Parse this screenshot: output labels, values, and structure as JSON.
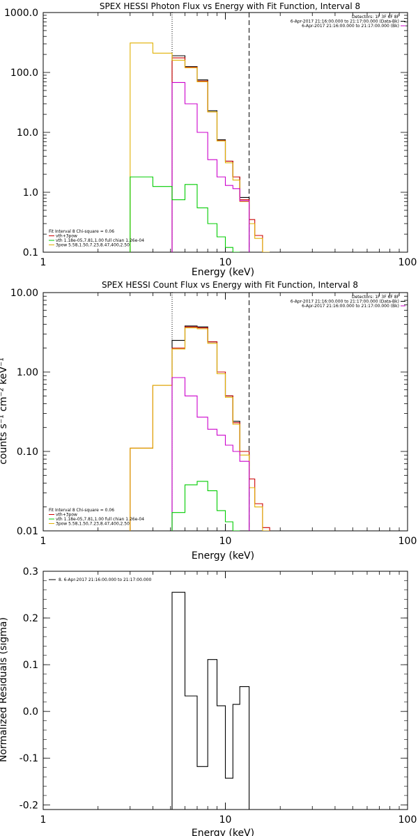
{
  "chart_data": [
    {
      "type": "line",
      "title": "SPEX HESSI Photon Flux vs Energy with Fit Function, Interval 8",
      "xlabel": "Energy (keV)",
      "ylabel": "",
      "x_scale": "log",
      "y_scale": "log",
      "xlim": [
        1,
        100
      ],
      "ylim": [
        0.1,
        1000
      ],
      "x_ticks": [
        "1",
        "10",
        "100"
      ],
      "y_ticks": [
        "0.1",
        "1.0",
        "10.0",
        "100.0",
        "1000.0"
      ],
      "info_lines": [
        {
          "text": "Detectors: 1F 3F 6F 8F",
          "color": "#000000"
        },
        {
          "text": "6-Apr-2017 21:16:00.000 to 21:17:00.000 (Data-Bk)",
          "color": "#000000"
        },
        {
          "text": "6-Apr-2017 21:16:00.000 to 21:17:00.000 (Bk)",
          "color": "#cc00cc"
        }
      ],
      "legend_lines": [
        {
          "text": "Fit Interval  8    Chi-square = 0.06",
          "color": "#000000"
        },
        {
          "text": "vth+3pow",
          "color": "#cc0000"
        },
        {
          "text": "vth 1.18e-05,7.81,1.00   full chian 1.26e-04",
          "color": "#00cc00"
        },
        {
          "text": "3pow 5.58,1.50,7.23,8.47,400,2.50",
          "color": "#e0b000"
        }
      ],
      "vlines": [
        {
          "x": 5.1,
          "style": "dotted"
        },
        {
          "x": 13.5,
          "style": "dashed"
        }
      ],
      "bin_edges": [
        3,
        4,
        5.1,
        6,
        7,
        8,
        9,
        10,
        11,
        12,
        13.5,
        14.5,
        16,
        17.5
      ],
      "series": [
        {
          "name": "Data-Bk",
          "color": "#000000",
          "values": [
            null,
            null,
            190,
            125,
            75,
            23,
            7.5,
            3.3,
            1.8,
            0.82,
            null,
            null,
            null
          ]
        },
        {
          "name": "vth+3pow",
          "color": "#cc0000",
          "values": [
            null,
            null,
            175,
            122,
            72,
            22,
            7.3,
            3.3,
            1.8,
            0.75,
            0.35,
            0.19,
            null
          ]
        },
        {
          "name": "3pow",
          "color": "#e0b000",
          "values": [
            310,
            210,
            160,
            120,
            70,
            22,
            7.2,
            3.1,
            1.6,
            0.7,
            0.3,
            0.17,
            0.1
          ]
        },
        {
          "name": "Bk",
          "color": "#cc00cc",
          "values": [
            null,
            null,
            68,
            30,
            10,
            3.5,
            1.8,
            1.3,
            1.15,
            0.72,
            null,
            null,
            null
          ]
        },
        {
          "name": "vth",
          "color": "#00cc00",
          "values": [
            1.8,
            1.25,
            0.75,
            1.35,
            0.55,
            0.3,
            0.18,
            0.12,
            0.1,
            null,
            null,
            null,
            null
          ]
        }
      ]
    },
    {
      "type": "line",
      "title": "SPEX HESSI Count Flux vs Energy with Fit Function, Interval 8",
      "xlabel": "Energy (keV)",
      "ylabel": "counts s⁻¹ cm⁻² keV⁻¹",
      "x_scale": "log",
      "y_scale": "log",
      "xlim": [
        1,
        100
      ],
      "ylim": [
        0.01,
        10
      ],
      "x_ticks": [
        "1",
        "10",
        "100"
      ],
      "y_ticks": [
        "0.01",
        "0.10",
        "1.00",
        "10.00"
      ],
      "info_lines": [
        {
          "text": "Detectors: 1F 3F 6F 8F",
          "color": "#000000"
        },
        {
          "text": "6-Apr-2017 21:16:00.000 to 21:17:00.000 (Data-Bk)",
          "color": "#000000"
        },
        {
          "text": "6-Apr-2017 21:16:00.000 to 21:17:00.000 (Bk)",
          "color": "#cc00cc"
        }
      ],
      "legend_lines": [
        {
          "text": "Fit Interval  8    Chi-square = 0.06",
          "color": "#000000"
        },
        {
          "text": "vth+3pow",
          "color": "#cc0000"
        },
        {
          "text": "vth 1.18e-05,7.81,1.00   full chian 1.26e-04",
          "color": "#00cc00"
        },
        {
          "text": "3pow 5.58,1.50,7.23,8.47,400,2.50",
          "color": "#e0b000"
        }
      ],
      "vlines": [
        {
          "x": 5.1,
          "style": "dotted"
        },
        {
          "x": 13.5,
          "style": "dashed"
        }
      ],
      "bin_edges": [
        3,
        4,
        5.1,
        6,
        7,
        8,
        9,
        10,
        11,
        12,
        13.5,
        14.5,
        16,
        17.5
      ],
      "series": [
        {
          "name": "Data-Bk",
          "color": "#000000",
          "values": [
            null,
            null,
            2.5,
            3.8,
            3.7,
            2.4,
            1.0,
            0.5,
            0.24,
            0.1,
            null,
            null,
            null
          ]
        },
        {
          "name": "vth+3pow",
          "color": "#cc0000",
          "values": [
            0.11,
            0.68,
            2.0,
            3.7,
            3.6,
            2.4,
            1.0,
            0.5,
            0.23,
            0.1,
            0.045,
            0.022,
            0.011
          ]
        },
        {
          "name": "3pow",
          "color": "#e0b000",
          "values": [
            0.11,
            0.68,
            1.95,
            3.6,
            3.5,
            2.3,
            0.95,
            0.48,
            0.22,
            0.09,
            0.035,
            0.02,
            0.01
          ]
        },
        {
          "name": "Bk",
          "color": "#cc00cc",
          "values": [
            null,
            null,
            0.85,
            0.5,
            0.27,
            0.19,
            0.16,
            0.12,
            0.1,
            0.075,
            null,
            null,
            null
          ]
        },
        {
          "name": "vth",
          "color": "#00cc00",
          "values": [
            null,
            null,
            0.017,
            0.038,
            0.042,
            0.032,
            0.018,
            0.013,
            0.01,
            null,
            null,
            null,
            null
          ]
        }
      ]
    },
    {
      "type": "line",
      "title": "",
      "xlabel": "Energy (keV)",
      "ylabel": "Normalized Residuals (sigma)",
      "x_scale": "log",
      "y_scale": "linear",
      "xlim": [
        1,
        100
      ],
      "ylim": [
        -0.21,
        0.3
      ],
      "x_ticks": [
        "1",
        "10",
        "100"
      ],
      "y_ticks": [
        "-0.2",
        "-0.1",
        "0.0",
        "0.1",
        "0.2",
        "0.3"
      ],
      "legend_lines": [
        {
          "text": "8.  6-Apr-2017 21:16:00.000 to 21:17:00.000",
          "color": "#000000"
        }
      ],
      "bin_edges": [
        5.1,
        6,
        7,
        8,
        9,
        10,
        11,
        12,
        13.5
      ],
      "series": [
        {
          "name": "",
          "color": "#000000",
          "values": [
            0.255,
            0.033,
            -0.118,
            0.111,
            0.012,
            -0.143,
            0.015,
            0.053
          ]
        }
      ]
    }
  ]
}
